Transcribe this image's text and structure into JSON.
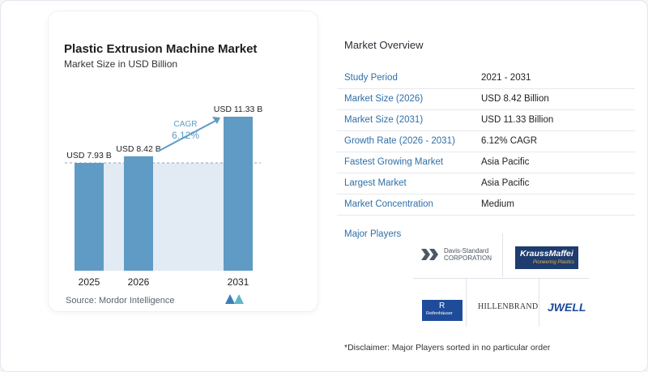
{
  "chart_data": {
    "type": "bar",
    "title": "Plastic Extrusion Machine Market",
    "subtitle": "Market Size in USD Billion",
    "categories": [
      "2025",
      "2026",
      "2031"
    ],
    "values": [
      7.93,
      8.42,
      11.33
    ],
    "value_labels": [
      "USD 7.93 B",
      "USD 8.42 B",
      "USD 11.33 B"
    ],
    "ylim": [
      0,
      12
    ],
    "grid": false,
    "bar_color": "#5f9bc4",
    "shade_color": "#e2ebf3",
    "annotation": {
      "label": "CAGR",
      "value": "6.12%"
    },
    "source": "Source:  Mordor Intelligence"
  },
  "overview": {
    "title": "Market Overview",
    "rows": [
      {
        "key": "Study Period",
        "value": "2021 - 2031"
      },
      {
        "key": "Market Size (2026)",
        "value": "USD 8.42 Billion"
      },
      {
        "key": "Market Size (2031)",
        "value": "USD 11.33 Billion"
      },
      {
        "key": "Growth Rate (2026 - 2031)",
        "value": "6.12% CAGR"
      },
      {
        "key": "Fastest Growing Market",
        "value": "Asia Pacific"
      },
      {
        "key": "Largest Market",
        "value": "Asia Pacific"
      },
      {
        "key": "Market Concentration",
        "value": "Medium"
      }
    ]
  },
  "players": {
    "title": "Major Players",
    "davis_standard": [
      "Davis-Standard",
      "CORPORATION"
    ],
    "kraussmaffei": {
      "name": "KraussMaffei",
      "tagline": "Pioneering Plastics"
    },
    "reifenhauser": {
      "mark": "R",
      "name": "Reifenhäuser"
    },
    "hillenbrand": "HILLENBRAND",
    "jwell": "JWELL"
  },
  "disclaimer": "*Disclaimer: Major Players sorted in no particular order",
  "colors": {
    "accent": "#2f6fa7",
    "bar": "#5f9bc4"
  }
}
